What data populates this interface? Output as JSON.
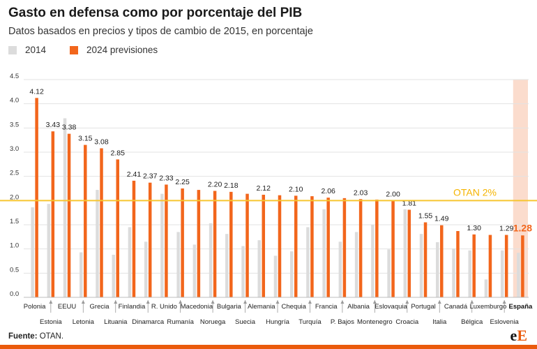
{
  "title": "Gasto en defensa como por porcentaje del PIB",
  "subtitle": "Datos basados en precios y tipos de cambio de 2015, en porcentaje",
  "legend": {
    "item_2014": "2014",
    "item_2024": "2024 previsiones"
  },
  "source_label": "Fuente:",
  "source_value": "OTAN.",
  "logo": {
    "part1": "e",
    "part2": "E"
  },
  "colors": {
    "bar_2014": "#dcdcdc",
    "bar_2024": "#f2661c",
    "threshold": "#f7c530",
    "threshold_text": "#f5b400",
    "highlight_bg": "#fbd8c8",
    "spain_label": "#f2661c",
    "footer": "#ea5a0c"
  },
  "chart_data": {
    "type": "bar",
    "title": "Gasto en defensa como por porcentaje del PIB",
    "subtitle": "Datos basados en precios y tipos de cambio de 2015, en porcentaje",
    "xlabel": "",
    "ylabel": "",
    "ylim": [
      0,
      4.5
    ],
    "yticks": [
      "0.0",
      "0.5",
      "1.0",
      "1.5",
      "2.0",
      "2.5",
      "3.0",
      "3.5",
      "4.0",
      "4.5"
    ],
    "grid": true,
    "legend_position": "top-left",
    "categories": [
      "Polonia",
      "Estonia",
      "EEUU",
      "Letonia",
      "Grecia",
      "Lituania",
      "Finlandia",
      "Dinamarca",
      "R. Unido",
      "Rumanía",
      "Macedonia",
      "Noruega",
      "Bulgaria",
      "Suecia",
      "Alemania",
      "Hungría",
      "Chequia",
      "Turquía",
      "Francia",
      "P. Bajos",
      "Albania",
      "Montenegro",
      "Eslovaquia",
      "Croacia",
      "Portugal",
      "Italia",
      "Canadá",
      "Bélgica",
      "Luxemburgo",
      "Eslovenia",
      "España"
    ],
    "series": [
      {
        "name": "2014",
        "values": [
          1.86,
          1.93,
          3.7,
          0.93,
          2.22,
          0.88,
          1.45,
          1.15,
          2.14,
          1.35,
          1.09,
          1.53,
          1.31,
          1.06,
          1.18,
          0.86,
          0.95,
          1.45,
          1.82,
          1.15,
          1.35,
          1.5,
          0.99,
          1.82,
          1.31,
          1.14,
          1.01,
          0.97,
          0.37,
          0.97,
          0.92
        ],
        "labels": [
          "",
          "",
          "",
          "",
          "",
          "",
          "",
          "",
          "",
          "",
          "",
          "",
          "",
          "",
          "",
          "",
          "",
          "",
          "",
          "",
          "",
          "",
          "",
          "",
          "",
          "",
          "",
          "",
          "",
          "",
          ""
        ]
      },
      {
        "name": "2024 previsiones",
        "values": [
          4.12,
          3.43,
          3.38,
          3.15,
          3.08,
          2.85,
          2.41,
          2.37,
          2.33,
          2.25,
          2.22,
          2.2,
          2.18,
          2.14,
          2.12,
          2.11,
          2.1,
          2.09,
          2.06,
          2.05,
          2.03,
          2.02,
          2.0,
          1.81,
          1.55,
          1.49,
          1.37,
          1.3,
          1.29,
          1.29,
          1.28
        ],
        "labels": [
          "4.12",
          "3.43",
          "3.38",
          "3.15",
          "3.08",
          "2.85",
          "2.41",
          "2.37",
          "2.33",
          "2.25",
          "",
          "2.20",
          "2.18",
          "",
          "2.12",
          "",
          "2.10",
          "",
          "2.06",
          "",
          "2.03",
          "",
          "2.00",
          "1.81",
          "1.55",
          "1.49",
          "",
          "1.30",
          "",
          "1.29",
          "1.28"
        ]
      }
    ],
    "threshold": {
      "value": 2.0,
      "label": "OTAN 2%"
    },
    "highlight": "España"
  }
}
